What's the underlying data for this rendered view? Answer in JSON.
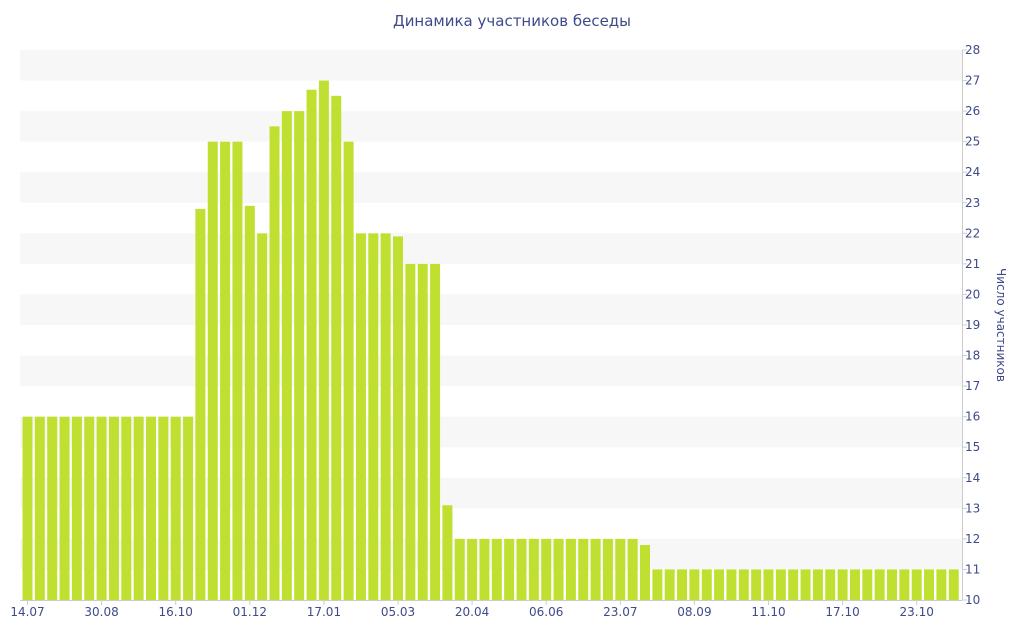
{
  "chart_data": {
    "type": "bar",
    "title": "Динамика участников беседы",
    "xlabel": "",
    "ylabel": "Число участников",
    "ylim": [
      10,
      28
    ],
    "y_ticks": [
      10,
      11,
      12,
      13,
      14,
      15,
      16,
      17,
      18,
      19,
      20,
      21,
      22,
      23,
      24,
      25,
      26,
      27,
      28
    ],
    "y_axis_position": "right",
    "grid": "horizontal alternating bands",
    "x_tick_labels": [
      "14.07",
      "30.08",
      "16.10",
      "01.12",
      "17.01",
      "05.03",
      "20.04",
      "06.06",
      "23.07",
      "08.09",
      "11.10",
      "17.10",
      "23.10"
    ],
    "x_tick_bar_index": [
      0,
      6,
      12,
      18,
      24,
      30,
      36,
      42,
      48,
      54,
      60,
      66,
      72
    ],
    "values": [
      16,
      16,
      16,
      16,
      16,
      16,
      16,
      16,
      16,
      16,
      16,
      16,
      16,
      16,
      22.8,
      25,
      25,
      25,
      22.9,
      22,
      25.5,
      26,
      26,
      26.7,
      27,
      26.5,
      25,
      22,
      22,
      22,
      21.9,
      21,
      21,
      21,
      13.1,
      12,
      12,
      12,
      12,
      12,
      12,
      12,
      12,
      12,
      12,
      12,
      12,
      12,
      12,
      12,
      11.8,
      11,
      11,
      11,
      11,
      11,
      11,
      11,
      11,
      11,
      11,
      11,
      11,
      11,
      11,
      11,
      11,
      11,
      11,
      11,
      11,
      11,
      11,
      11,
      11,
      11
    ],
    "colors": {
      "bar": "#bfe030",
      "band": "#f7f7f7",
      "text": "#3e4a8a",
      "axis": "#cccccc"
    }
  }
}
